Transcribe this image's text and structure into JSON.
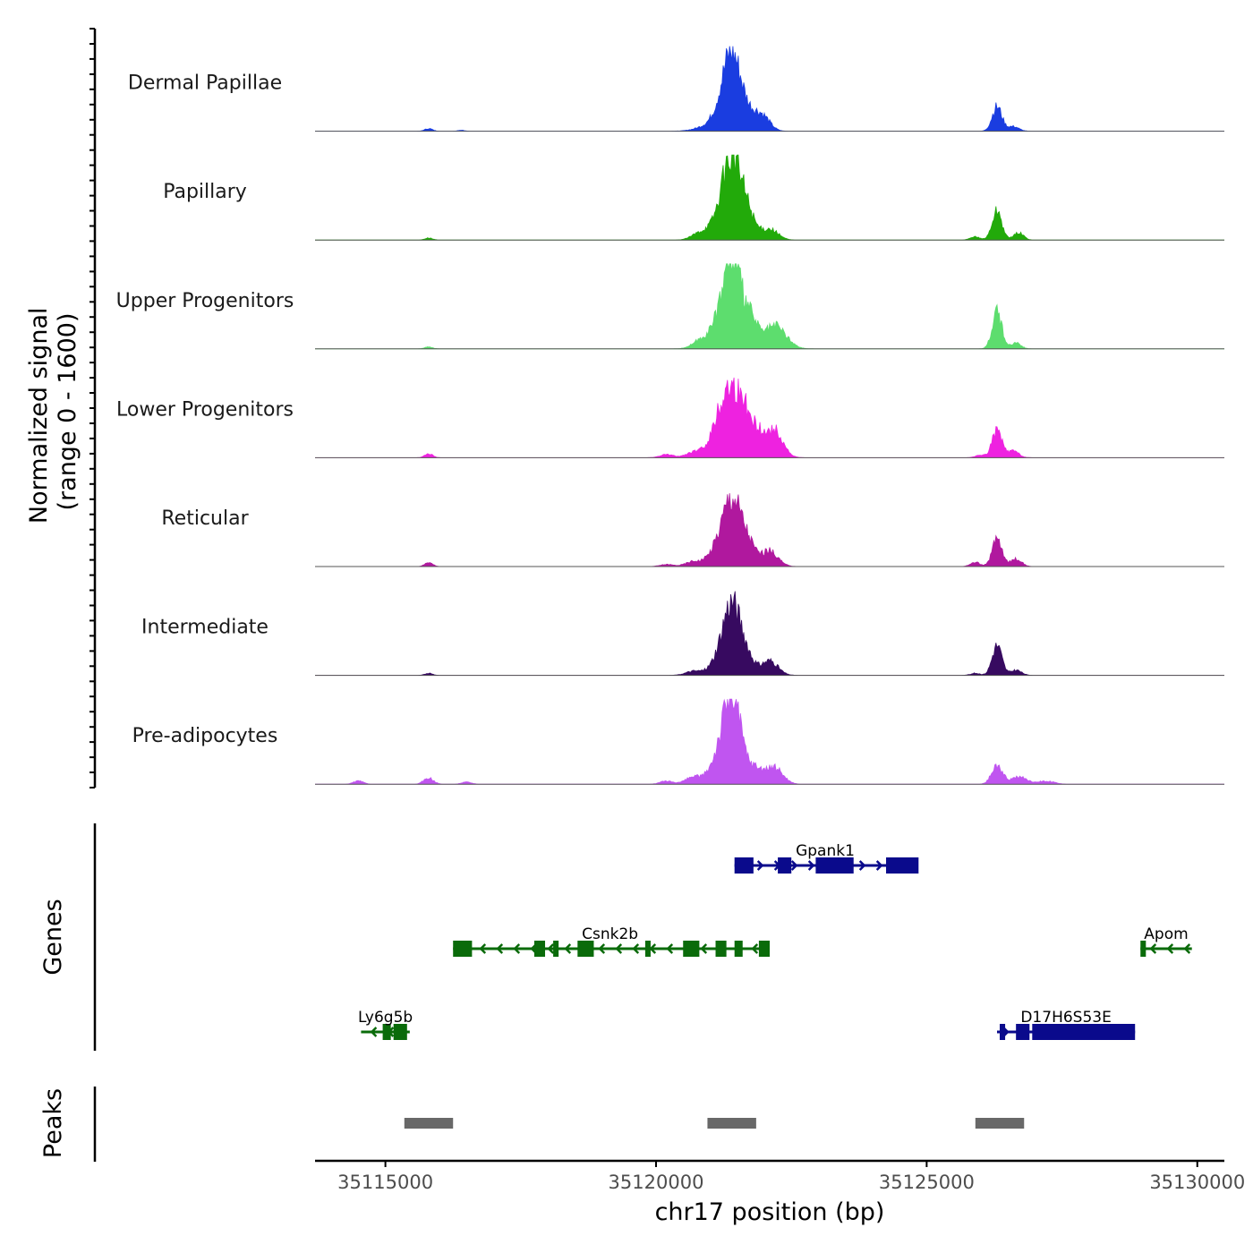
{
  "chart_data": {
    "type": "area",
    "title": "",
    "ylabel": "Normalized signal\n(range 0 - 1600)",
    "ylim": [
      0,
      1600
    ],
    "xlabel": "chr17 position (bp)",
    "xlim": [
      35113700,
      35130500
    ],
    "x_ticks": [
      35115000,
      35120000,
      35125000,
      35130000
    ],
    "x_tick_labels": [
      "35115000",
      "35120000",
      "35125000",
      "35130000"
    ],
    "series": [
      {
        "name": "Dermal Papillae",
        "color": "#1a3de0",
        "peaks": [
          [
            35115800,
            50,
            70
          ],
          [
            35116400,
            20,
            60
          ],
          [
            35121100,
            150,
            260
          ],
          [
            35121400,
            1450,
            180
          ],
          [
            35121800,
            250,
            150
          ],
          [
            35122000,
            200,
            130
          ],
          [
            35126300,
            470,
            90
          ],
          [
            35126600,
            90,
            100
          ]
        ]
      },
      {
        "name": "Papillary",
        "color": "#22aa0a",
        "peaks": [
          [
            35115800,
            40,
            70
          ],
          [
            35120800,
            100,
            150
          ],
          [
            35121100,
            180,
            200
          ],
          [
            35121400,
            1530,
            180
          ],
          [
            35121700,
            380,
            140
          ],
          [
            35122100,
            210,
            150
          ],
          [
            35125900,
            60,
            90
          ],
          [
            35126300,
            560,
            90
          ],
          [
            35126700,
            140,
            90
          ]
        ]
      },
      {
        "name": "Upper Progenitors",
        "color": "#5ddd6e",
        "peaks": [
          [
            35115800,
            40,
            70
          ],
          [
            35120800,
            120,
            150
          ],
          [
            35121100,
            280,
            180
          ],
          [
            35121400,
            1700,
            170
          ],
          [
            35121750,
            500,
            130
          ],
          [
            35122200,
            440,
            200
          ],
          [
            35126300,
            700,
            90
          ],
          [
            35126650,
            120,
            90
          ]
        ]
      },
      {
        "name": "Lower Progenitors",
        "color": "#ee22e0",
        "peaks": [
          [
            35115800,
            80,
            70
          ],
          [
            35120200,
            60,
            120
          ],
          [
            35120700,
            100,
            150
          ],
          [
            35121200,
            600,
            190
          ],
          [
            35121450,
            1050,
            200
          ],
          [
            35121800,
            500,
            190
          ],
          [
            35122200,
            480,
            150
          ],
          [
            35126000,
            50,
            90
          ],
          [
            35126300,
            530,
            90
          ],
          [
            35126600,
            130,
            100
          ]
        ]
      },
      {
        "name": "Reticular",
        "color": "#b0189e",
        "peaks": [
          [
            35115800,
            80,
            70
          ],
          [
            35120200,
            40,
            120
          ],
          [
            35120700,
            100,
            150
          ],
          [
            35121100,
            250,
            150
          ],
          [
            35121400,
            1300,
            170
          ],
          [
            35121700,
            380,
            140
          ],
          [
            35122100,
            300,
            150
          ],
          [
            35125900,
            80,
            90
          ],
          [
            35126300,
            530,
            90
          ],
          [
            35126650,
            150,
            100
          ]
        ]
      },
      {
        "name": "Intermediate",
        "color": "#370a60",
        "peaks": [
          [
            35115800,
            40,
            70
          ],
          [
            35120700,
            80,
            150
          ],
          [
            35121100,
            150,
            150
          ],
          [
            35121400,
            1380,
            170
          ],
          [
            35121700,
            250,
            130
          ],
          [
            35122100,
            280,
            150
          ],
          [
            35125900,
            40,
            90
          ],
          [
            35126300,
            570,
            90
          ],
          [
            35126650,
            100,
            100
          ]
        ]
      },
      {
        "name": "Pre-adipocytes",
        "color": "#c055f0",
        "peaks": [
          [
            35114500,
            60,
            90
          ],
          [
            35115800,
            120,
            90
          ],
          [
            35116500,
            40,
            90
          ],
          [
            35120200,
            60,
            120
          ],
          [
            35120700,
            140,
            150
          ],
          [
            35121100,
            300,
            150
          ],
          [
            35121400,
            1700,
            170
          ],
          [
            35121850,
            280,
            150
          ],
          [
            35122200,
            300,
            150
          ],
          [
            35126300,
            350,
            100
          ],
          [
            35126700,
            140,
            150
          ],
          [
            35127200,
            60,
            150
          ]
        ]
      }
    ],
    "genes": {
      "title": "Genes",
      "items": [
        {
          "name": "Gpank1",
          "strand": "+",
          "color": "#0a0a8c",
          "start": 35121450,
          "end": 35124800,
          "row": 1,
          "exons": [
            [
              35121450,
              35121800
            ],
            [
              35122250,
              35122500
            ],
            [
              35122950,
              35123650
            ],
            [
              35124250,
              35124850
            ]
          ]
        },
        {
          "name": "Csnk2b",
          "strand": "-",
          "color": "#0a6b0a",
          "start": 35116250,
          "end": 35122050,
          "row": 2,
          "exons": [
            [
              35116250,
              35116600
            ],
            [
              35117750,
              35117950
            ],
            [
              35118100,
              35118200
            ],
            [
              35118550,
              35118850
            ],
            [
              35119800,
              35119900
            ],
            [
              35120500,
              35120800
            ],
            [
              35121100,
              35121300
            ],
            [
              35121450,
              35121600
            ],
            [
              35121900,
              35122100
            ]
          ]
        },
        {
          "name": "Apom",
          "strand": "-",
          "color": "#0a6b0a",
          "start": 35128950,
          "end": 35129900,
          "row": 2,
          "exons": [
            [
              35128950,
              35129050
            ]
          ]
        },
        {
          "name": "Ly6g5b",
          "strand": "-",
          "color": "#0a6b0a",
          "start": 35114550,
          "end": 35115450,
          "row": 3,
          "exons": [
            [
              35114950,
              35115100
            ],
            [
              35115150,
              35115400
            ]
          ]
        },
        {
          "name": "D17H6S53E",
          "strand": "+",
          "color": "#0a0a8c",
          "start": 35126300,
          "end": 35128850,
          "row": 3,
          "exons": [
            [
              35126350,
              35126450
            ],
            [
              35126650,
              35126900
            ],
            [
              35126950,
              35128850
            ]
          ]
        }
      ]
    },
    "peaks_track": {
      "title": "Peaks",
      "color": "#686868",
      "regions": [
        [
          35115350,
          35116250
        ],
        [
          35120950,
          35121850
        ],
        [
          35125900,
          35126800
        ]
      ]
    }
  }
}
